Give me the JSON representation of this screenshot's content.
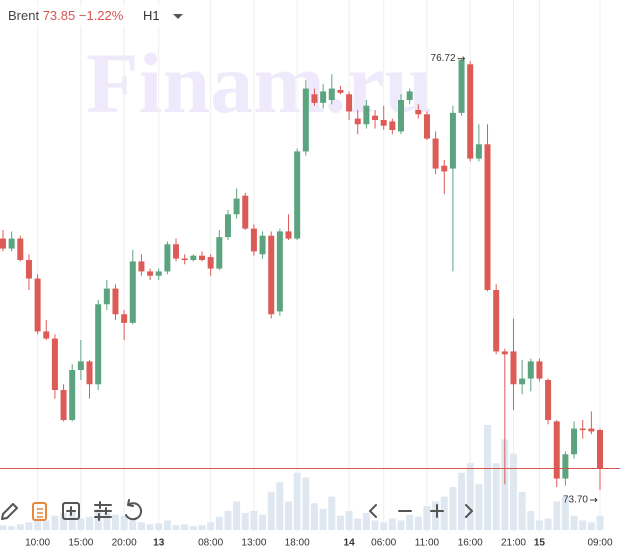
{
  "chart_data": {
    "type": "candlestick",
    "symbol": "Brent",
    "last": 73.85,
    "change": "−1.22%",
    "timeframe": "H1",
    "watermark": "Finam.ru",
    "up_color": "#5ba47f",
    "down_color": "#dc5b56",
    "volume_color": "#dfe8f1",
    "last_line_color": "#d9534f",
    "ylim": [
      73.45,
      77.13
    ],
    "volume_lim": [
      0,
      110
    ],
    "max_label": 76.72,
    "min_label": {
      "value": 73.7,
      "label": "73.70"
    },
    "categories": [
      null,
      null,
      null,
      null,
      "10:00",
      null,
      null,
      null,
      null,
      "15:00",
      null,
      null,
      null,
      null,
      "20:00",
      null,
      null,
      null,
      "13",
      null,
      null,
      null,
      null,
      null,
      "08:00",
      null,
      null,
      null,
      null,
      "13:00",
      null,
      null,
      null,
      null,
      "18:00",
      null,
      null,
      null,
      null,
      null,
      "14",
      null,
      null,
      null,
      "06:00",
      null,
      null,
      null,
      null,
      "11:00",
      null,
      null,
      null,
      null,
      "16:00",
      null,
      null,
      null,
      null,
      "21:00",
      null,
      null,
      "15",
      null,
      null,
      null,
      null,
      null,
      null,
      "09:00"
    ],
    "open": [
      75.46,
      75.39,
      75.46,
      75.31,
      75.18,
      74.81,
      74.76,
      74.4,
      74.19,
      74.54,
      74.6,
      74.44,
      75.0,
      75.11,
      74.93,
      74.87,
      75.3,
      75.23,
      75.2,
      75.23,
      75.42,
      75.32,
      75.31,
      75.34,
      75.33,
      75.25,
      75.47,
      75.63,
      75.76,
      75.53,
      75.35,
      75.48,
      74.95,
      75.51,
      75.46,
      76.07,
      76.47,
      76.41,
      76.43,
      76.5,
      76.47,
      76.3,
      76.26,
      76.32,
      76.29,
      76.28,
      76.21,
      76.43,
      76.36,
      76.33,
      76.16,
      75.97,
      75.95,
      76.34,
      76.68,
      76.02,
      76.12,
      75.1,
      74.67,
      74.67,
      74.44,
      74.48,
      74.6,
      74.47,
      74.18,
      73.78,
      73.95,
      74.13,
      74.13,
      74.12
    ],
    "high": [
      75.52,
      75.51,
      75.48,
      75.35,
      75.21,
      74.89,
      74.79,
      74.44,
      74.58,
      74.75,
      74.61,
      75.03,
      75.17,
      75.14,
      74.96,
      75.38,
      75.35,
      75.25,
      75.25,
      75.44,
      75.46,
      75.35,
      75.35,
      75.37,
      75.35,
      75.52,
      75.66,
      75.81,
      75.78,
      75.56,
      75.51,
      75.51,
      75.53,
      75.63,
      76.09,
      76.57,
      76.51,
      76.54,
      76.61,
      76.53,
      76.49,
      76.36,
      76.43,
      76.36,
      76.39,
      76.3,
      76.47,
      76.51,
      76.4,
      76.35,
      76.21,
      76.01,
      76.39,
      76.72,
      76.7,
      76.26,
      76.26,
      75.14,
      74.69,
      74.9,
      74.61,
      74.62,
      74.62,
      74.48,
      74.19,
      73.97,
      74.18,
      74.19,
      74.25,
      74.13
    ],
    "low": [
      75.37,
      75.37,
      75.3,
      75.1,
      74.79,
      74.75,
      74.34,
      74.18,
      74.18,
      74.47,
      74.34,
      74.4,
      74.96,
      74.89,
      74.75,
      74.86,
      75.2,
      75.17,
      75.17,
      75.21,
      75.3,
      75.28,
      75.3,
      75.3,
      75.2,
      75.24,
      75.45,
      75.6,
      75.52,
      75.34,
      75.32,
      74.9,
      74.92,
      75.45,
      75.45,
      76.04,
      76.39,
      76.37,
      76.4,
      76.47,
      76.29,
      76.19,
      76.23,
      76.23,
      76.22,
      76.19,
      76.19,
      76.4,
      76.3,
      76.15,
      75.91,
      75.77,
      75.23,
      76.32,
      76.0,
      76.0,
      75.09,
      74.65,
      73.74,
      74.26,
      74.37,
      74.39,
      74.46,
      74.16,
      73.72,
      73.73,
      73.92,
      74.06,
      74.09,
      73.7
    ],
    "close": [
      75.39,
      75.46,
      75.31,
      75.18,
      74.81,
      74.76,
      74.4,
      74.19,
      74.54,
      74.6,
      74.44,
      75.0,
      75.11,
      74.93,
      74.87,
      75.3,
      75.23,
      75.2,
      75.23,
      75.42,
      75.32,
      75.31,
      75.34,
      75.31,
      75.25,
      75.47,
      75.63,
      75.74,
      75.53,
      75.37,
      75.48,
      74.93,
      75.51,
      75.46,
      76.07,
      76.51,
      76.41,
      76.49,
      76.51,
      76.48,
      76.35,
      76.26,
      76.39,
      76.29,
      76.25,
      76.22,
      76.43,
      76.49,
      76.33,
      76.16,
      75.95,
      75.93,
      76.34,
      76.71,
      76.02,
      76.12,
      75.1,
      74.67,
      74.65,
      74.44,
      74.48,
      74.6,
      74.48,
      74.19,
      73.78,
      73.95,
      74.13,
      74.12,
      74.11,
      73.85
    ],
    "volume": [
      5,
      4,
      6,
      8,
      12,
      10,
      15,
      18,
      20,
      12,
      14,
      22,
      18,
      16,
      15,
      12,
      8,
      6,
      7,
      10,
      5,
      6,
      4,
      5,
      8,
      14,
      20,
      30,
      18,
      20,
      16,
      40,
      50,
      30,
      60,
      55,
      28,
      22,
      35,
      15,
      20,
      12,
      18,
      10,
      8,
      12,
      10,
      16,
      14,
      25,
      30,
      35,
      45,
      60,
      70,
      48,
      110,
      70,
      95,
      80,
      40,
      20,
      10,
      12,
      30,
      35,
      15,
      10,
      8,
      15
    ]
  }
}
